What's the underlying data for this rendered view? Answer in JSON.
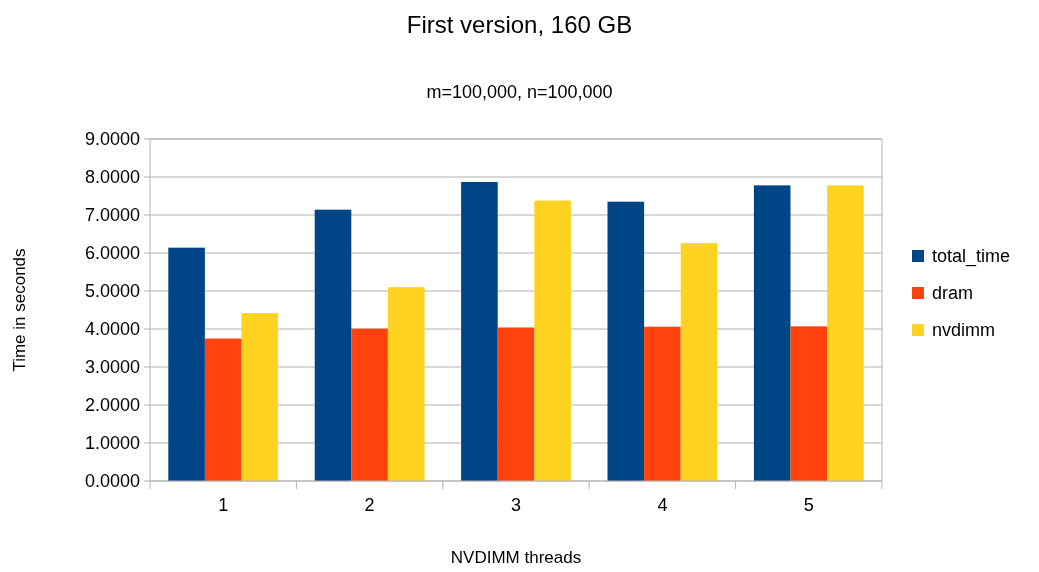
{
  "chart_data": {
    "type": "bar",
    "title": "First version, 160 GB",
    "subtitle": "m=100,000, n=100,000",
    "xlabel": "NVDIMM threads",
    "ylabel": "Time in seconds",
    "categories": [
      "1",
      "2",
      "3",
      "4",
      "5"
    ],
    "series": [
      {
        "name": "total_time",
        "color": "#004586",
        "values": [
          6.14,
          7.14,
          7.87,
          7.35,
          7.78
        ]
      },
      {
        "name": "dram",
        "color": "#ff420e",
        "values": [
          3.75,
          4.01,
          4.04,
          4.06,
          4.07
        ]
      },
      {
        "name": "nvdimm",
        "color": "#ffd320",
        "values": [
          4.42,
          5.1,
          7.38,
          6.26,
          7.78
        ]
      }
    ],
    "ylim": [
      0,
      9
    ],
    "yticks": [
      {
        "value": 0,
        "label": "0.0000"
      },
      {
        "value": 1,
        "label": "1.0000"
      },
      {
        "value": 2,
        "label": "2.0000"
      },
      {
        "value": 3,
        "label": "3.0000"
      },
      {
        "value": 4,
        "label": "4.0000"
      },
      {
        "value": 5,
        "label": "5.0000"
      },
      {
        "value": 6,
        "label": "6.0000"
      },
      {
        "value": 7,
        "label": "7.0000"
      },
      {
        "value": 8,
        "label": "8.0000"
      },
      {
        "value": 9,
        "label": "9.0000"
      }
    ],
    "grid": "y",
    "legend": "right"
  }
}
